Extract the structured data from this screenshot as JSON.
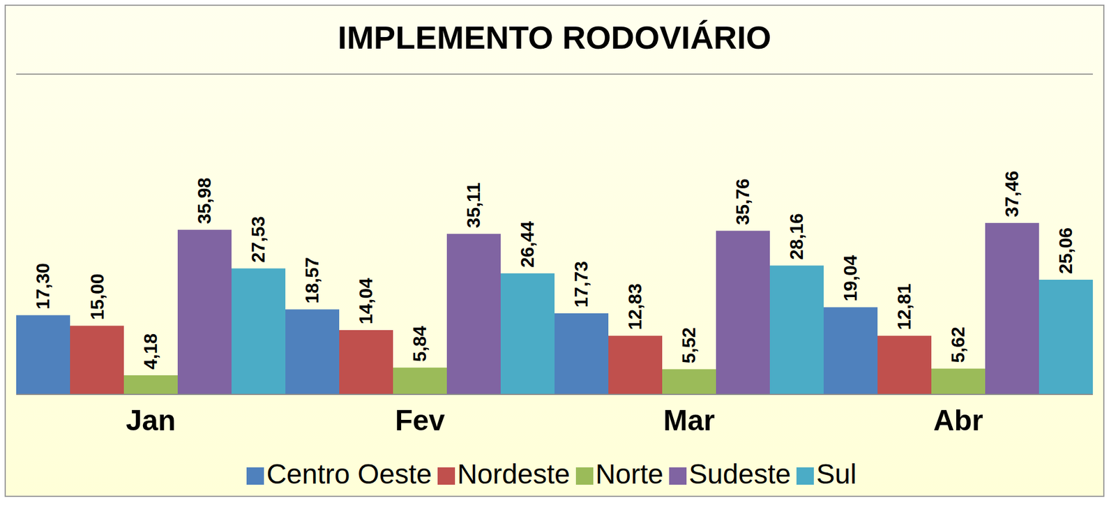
{
  "chart_data": {
    "type": "bar",
    "title": "IMPLEMENTO RODOVIÁRIO",
    "categories": [
      "Jan",
      "Fev",
      "Mar",
      "Abr"
    ],
    "series": [
      {
        "name": "Centro Oeste",
        "color": "#4F81BD",
        "values": [
          17.3,
          18.57,
          17.73,
          19.04
        ],
        "value_labels": [
          "17,30",
          "18,57",
          "17,73",
          "19,04"
        ]
      },
      {
        "name": "Nordeste",
        "color": "#C0504D",
        "values": [
          15.0,
          14.04,
          12.83,
          12.81
        ],
        "value_labels": [
          "15,00",
          "14,04",
          "12,83",
          "12,81"
        ]
      },
      {
        "name": "Norte",
        "color": "#9BBB59",
        "values": [
          4.18,
          5.84,
          5.52,
          5.62
        ],
        "value_labels": [
          "4,18",
          "5,84",
          "5,52",
          "5,62"
        ]
      },
      {
        "name": "Sudeste",
        "color": "#8064A2",
        "values": [
          35.98,
          35.11,
          35.76,
          37.46
        ],
        "value_labels": [
          "35,98",
          "35,11",
          "35,76",
          "37,46"
        ]
      },
      {
        "name": "Sul",
        "color": "#4BACC6",
        "values": [
          27.53,
          26.44,
          28.16,
          25.06
        ],
        "value_labels": [
          "27,53",
          "26,44",
          "28,16",
          "25,06"
        ]
      }
    ],
    "ylim": [
      0,
      70
    ],
    "yticks": [
      0,
      10,
      20,
      30,
      40,
      50,
      60,
      70
    ],
    "grid": true,
    "legend": "bottom",
    "data_labels": true,
    "tick_labels": "x"
  }
}
